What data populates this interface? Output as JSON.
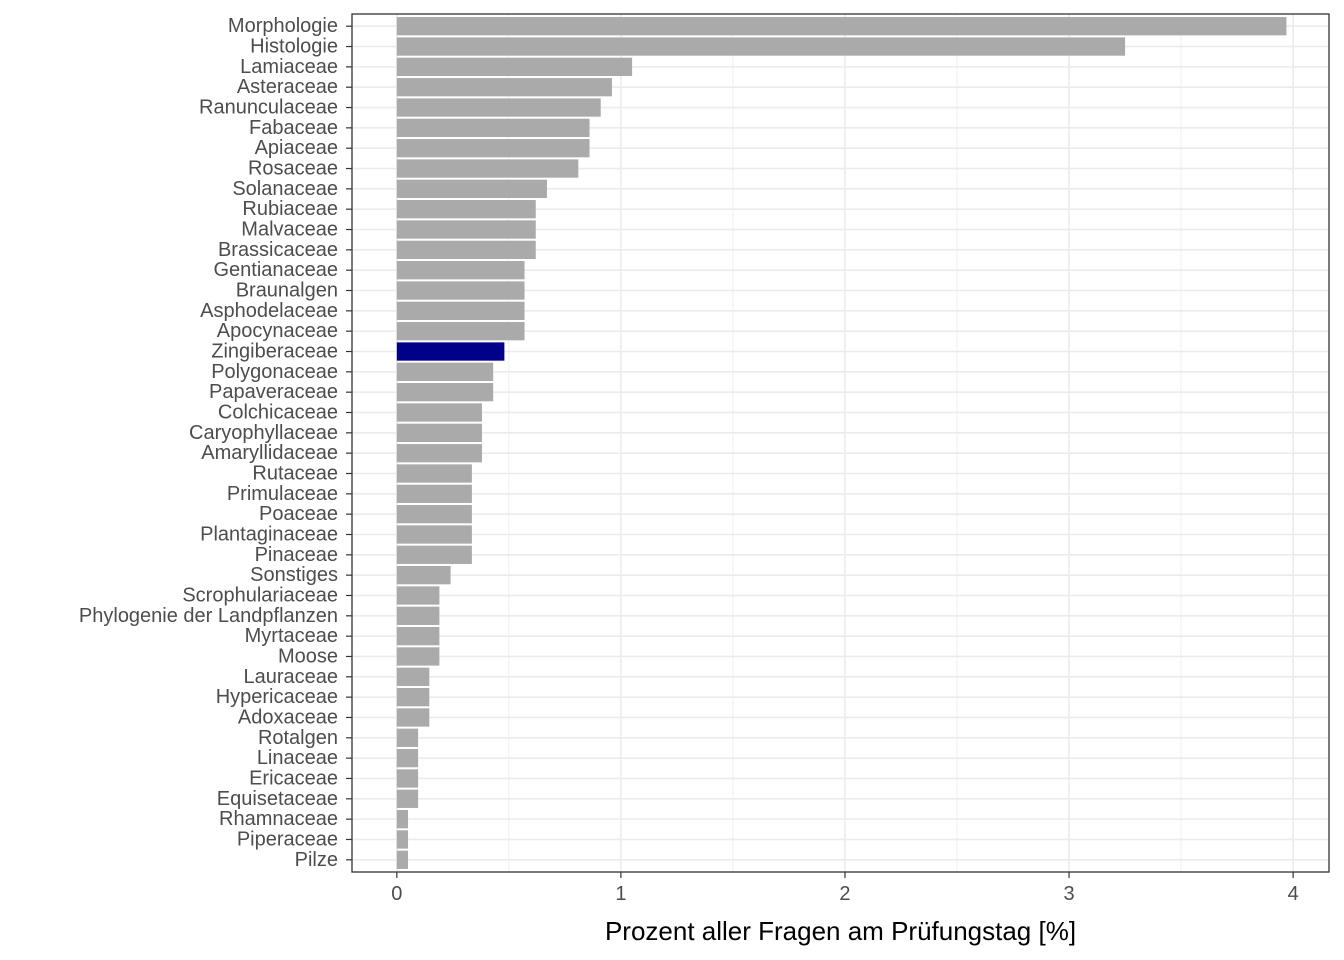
{
  "chart_data": {
    "type": "bar",
    "orientation": "horizontal",
    "title": "",
    "xlabel": "Prozent aller Fragen am Prüfungstag [%]",
    "ylabel": "",
    "xlim": [
      -0.2,
      4.16
    ],
    "x_ticks": [
      0,
      1,
      2,
      3,
      4
    ],
    "x_tick_labels": [
      "0",
      "1",
      "2",
      "3",
      "4"
    ],
    "grid": true,
    "colors": {
      "default": "#aaaaaa",
      "highlight": "#00008b",
      "grid": "#ebebeb",
      "panel_border": "#333333"
    },
    "highlight_category": "Zingiberaceae",
    "categories": [
      "Morphologie",
      "Histologie",
      "Lamiaceae",
      "Asteraceae",
      "Ranunculaceae",
      "Fabaceae",
      "Apiaceae",
      "Rosaceae",
      "Solanaceae",
      "Rubiaceae",
      "Malvaceae",
      "Brassicaceae",
      "Gentianaceae",
      "Braunalgen",
      "Asphodelaceae",
      "Apocynaceae",
      "Zingiberaceae",
      "Polygonaceae",
      "Papaveraceae",
      "Colchicaceae",
      "Caryophyllaceae",
      "Amaryllidaceae",
      "Rutaceae",
      "Primulaceae",
      "Poaceae",
      "Plantaginaceae",
      "Pinaceae",
      "Sonstiges",
      "Scrophulariaceae",
      "Phylogenie der Landpflanzen",
      "Myrtaceae",
      "Moose",
      "Lauraceae",
      "Hypericaceae",
      "Adoxaceae",
      "Rotalgen",
      "Linaceae",
      "Ericaceae",
      "Equisetaceae",
      "Rhamnaceae",
      "Piperaceae",
      "Pilze"
    ],
    "values": [
      3.97,
      3.25,
      1.05,
      0.96,
      0.91,
      0.86,
      0.86,
      0.81,
      0.67,
      0.62,
      0.62,
      0.62,
      0.57,
      0.57,
      0.57,
      0.57,
      0.48,
      0.43,
      0.43,
      0.38,
      0.38,
      0.38,
      0.335,
      0.335,
      0.335,
      0.335,
      0.335,
      0.24,
      0.19,
      0.19,
      0.19,
      0.19,
      0.145,
      0.145,
      0.145,
      0.095,
      0.095,
      0.095,
      0.095,
      0.05,
      0.05,
      0.05
    ]
  }
}
